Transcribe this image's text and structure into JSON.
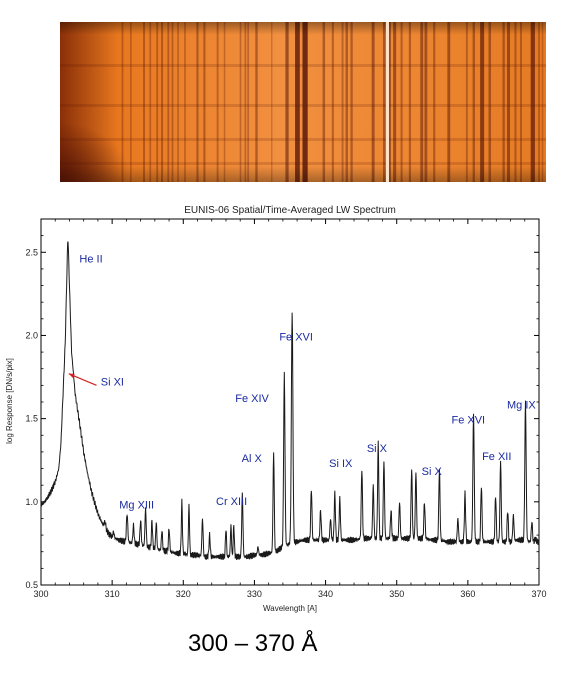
{
  "colors": {
    "label_color": "#1a2aa0",
    "arrow_color": "#d42020",
    "trace_color": "#1a1a1a",
    "axis_color": "#000000",
    "spectrogram_base": "#f08a2a",
    "spectrogram_dark": "#3a0a05",
    "spectrogram_light": "#f6b070"
  },
  "spectrogram": {
    "description_icon": "spectrogram-image"
  },
  "chart_data": {
    "type": "line",
    "title": "EUNIS-06 Spatial/Time-Averaged LW Spectrum",
    "xlabel": "Wavelength [A]",
    "ylabel": "log Response [DN/s/pix]",
    "xlim": [
      300,
      370
    ],
    "ylim": [
      0.5,
      2.7
    ],
    "x_ticks": [
      300,
      310,
      320,
      330,
      340,
      350,
      360,
      370
    ],
    "y_ticks": [
      0.5,
      1.0,
      1.5,
      2.0,
      2.5
    ],
    "y_tick_labels": [
      "0.5",
      "1.0",
      "1.5",
      "2.0",
      "2.5"
    ],
    "grid": false,
    "baseline": [
      [
        300.0,
        0.98
      ],
      [
        300.5,
        1.0
      ],
      [
        301.0,
        1.03
      ],
      [
        301.5,
        1.07
      ],
      [
        302.0,
        1.12
      ],
      [
        302.5,
        1.2
      ],
      [
        302.8,
        1.35
      ],
      [
        303.0,
        1.55
      ],
      [
        303.2,
        1.75
      ],
      [
        303.4,
        1.95
      ],
      [
        303.6,
        2.3
      ],
      [
        303.78,
        2.61
      ],
      [
        304.0,
        2.3
      ],
      [
        304.3,
        1.9
      ],
      [
        304.8,
        1.65
      ],
      [
        305.5,
        1.45
      ],
      [
        306.0,
        1.3
      ],
      [
        306.5,
        1.18
      ],
      [
        307.0,
        1.08
      ],
      [
        307.5,
        1.0
      ],
      [
        308.0,
        0.93
      ],
      [
        308.5,
        0.88
      ],
      [
        309.0,
        0.84
      ],
      [
        309.5,
        0.81
      ],
      [
        310.0,
        0.79
      ],
      [
        311.0,
        0.77
      ],
      [
        312.0,
        0.76
      ],
      [
        313.0,
        0.75
      ],
      [
        314.0,
        0.74
      ],
      [
        315.0,
        0.73
      ],
      [
        316.0,
        0.72
      ],
      [
        317.0,
        0.71
      ],
      [
        318.0,
        0.7
      ],
      [
        319.0,
        0.69
      ],
      [
        320.0,
        0.69
      ],
      [
        321.0,
        0.68
      ],
      [
        322.0,
        0.68
      ],
      [
        323.0,
        0.67
      ],
      [
        324.0,
        0.67
      ],
      [
        325.0,
        0.67
      ],
      [
        326.0,
        0.67
      ],
      [
        327.0,
        0.67
      ],
      [
        328.0,
        0.67
      ],
      [
        329.0,
        0.67
      ],
      [
        330.0,
        0.68
      ],
      [
        331.0,
        0.68
      ],
      [
        332.0,
        0.69
      ],
      [
        333.0,
        0.7
      ],
      [
        334.0,
        0.73
      ],
      [
        335.0,
        0.75
      ],
      [
        336.0,
        0.76
      ],
      [
        337.0,
        0.77
      ],
      [
        338.0,
        0.77
      ],
      [
        339.0,
        0.77
      ],
      [
        340.0,
        0.77
      ],
      [
        341.0,
        0.77
      ],
      [
        342.0,
        0.77
      ],
      [
        343.0,
        0.77
      ],
      [
        344.0,
        0.77
      ],
      [
        345.0,
        0.78
      ],
      [
        346.0,
        0.78
      ],
      [
        347.0,
        0.78
      ],
      [
        348.0,
        0.78
      ],
      [
        349.0,
        0.78
      ],
      [
        350.0,
        0.78
      ],
      [
        351.0,
        0.78
      ],
      [
        352.0,
        0.78
      ],
      [
        353.0,
        0.78
      ],
      [
        354.0,
        0.78
      ],
      [
        355.0,
        0.77
      ],
      [
        356.0,
        0.77
      ],
      [
        357.0,
        0.76
      ],
      [
        358.0,
        0.76
      ],
      [
        359.0,
        0.76
      ],
      [
        360.0,
        0.76
      ],
      [
        361.0,
        0.76
      ],
      [
        362.0,
        0.76
      ],
      [
        363.0,
        0.76
      ],
      [
        364.0,
        0.76
      ],
      [
        365.0,
        0.76
      ],
      [
        366.0,
        0.76
      ],
      [
        367.0,
        0.77
      ],
      [
        368.0,
        0.77
      ],
      [
        369.0,
        0.76
      ],
      [
        370.0,
        0.76
      ]
    ],
    "peaks": [
      [
        309.0,
        0.88,
        0.25
      ],
      [
        310.2,
        0.82,
        0.2
      ],
      [
        312.1,
        0.93,
        0.22
      ],
      [
        313.0,
        0.86,
        0.2
      ],
      [
        314.0,
        0.89,
        0.2
      ],
      [
        314.7,
        0.96,
        0.2
      ],
      [
        315.6,
        0.89,
        0.18
      ],
      [
        316.2,
        0.88,
        0.18
      ],
      [
        317.0,
        0.83,
        0.18
      ],
      [
        318.0,
        0.84,
        0.2
      ],
      [
        319.8,
        1.0,
        0.18
      ],
      [
        320.8,
        0.98,
        0.18
      ],
      [
        322.7,
        0.9,
        0.2
      ],
      [
        323.7,
        0.8,
        0.2
      ],
      [
        326.0,
        0.84,
        0.18
      ],
      [
        326.7,
        0.86,
        0.18
      ],
      [
        327.1,
        0.86,
        0.18
      ],
      [
        328.3,
        1.05,
        0.2
      ],
      [
        330.5,
        0.73,
        0.2
      ],
      [
        332.7,
        1.3,
        0.2
      ],
      [
        334.2,
        1.77,
        0.22
      ],
      [
        335.3,
        2.15,
        0.25
      ],
      [
        338.0,
        1.08,
        0.2
      ],
      [
        339.3,
        0.95,
        0.2
      ],
      [
        340.7,
        0.9,
        0.2
      ],
      [
        341.3,
        1.05,
        0.2
      ],
      [
        342.0,
        1.02,
        0.2
      ],
      [
        345.1,
        1.2,
        0.2
      ],
      [
        346.7,
        1.1,
        0.2
      ],
      [
        347.4,
        1.35,
        0.2
      ],
      [
        348.2,
        1.25,
        0.2
      ],
      [
        349.2,
        0.95,
        0.2
      ],
      [
        350.4,
        1.0,
        0.2
      ],
      [
        352.1,
        1.2,
        0.2
      ],
      [
        352.7,
        1.18,
        0.2
      ],
      [
        353.9,
        1.0,
        0.2
      ],
      [
        356.0,
        1.2,
        0.2
      ],
      [
        358.6,
        0.9,
        0.2
      ],
      [
        359.6,
        1.05,
        0.2
      ],
      [
        360.8,
        1.53,
        0.22
      ],
      [
        361.9,
        1.1,
        0.2
      ],
      [
        363.9,
        1.04,
        0.2
      ],
      [
        364.6,
        1.25,
        0.2
      ],
      [
        365.6,
        0.95,
        0.2
      ],
      [
        366.4,
        0.92,
        0.2
      ],
      [
        368.1,
        1.6,
        0.22
      ],
      [
        369.0,
        0.88,
        0.2
      ],
      [
        369.5,
        0.78,
        0.2
      ]
    ],
    "annotations": [
      {
        "text": "He II",
        "x": 305.4,
        "y": 2.44
      },
      {
        "text": "Si XI",
        "x": 308.4,
        "y": 1.7
      },
      {
        "text": "Mg XIII",
        "x": 311.0,
        "y": 0.96
      },
      {
        "text": "Cr XIII",
        "x": 324.6,
        "y": 0.98
      },
      {
        "text": "Fe XIV",
        "x": 327.3,
        "y": 1.6
      },
      {
        "text": "Al X",
        "x": 328.2,
        "y": 1.24
      },
      {
        "text": "Fe XVI",
        "x": 333.5,
        "y": 1.97
      },
      {
        "text": "Si IX",
        "x": 340.5,
        "y": 1.21
      },
      {
        "text": "Si X",
        "x": 345.8,
        "y": 1.3
      },
      {
        "text": "Si X",
        "x": 353.5,
        "y": 1.16
      },
      {
        "text": "Fe XVI",
        "x": 357.7,
        "y": 1.47
      },
      {
        "text": "Fe XII",
        "x": 362.0,
        "y": 1.25
      },
      {
        "text": "Mg IX",
        "x": 365.5,
        "y": 1.56
      }
    ],
    "arrow": {
      "from": [
        307.8,
        1.7
      ],
      "to": [
        303.9,
        1.77
      ]
    }
  },
  "caption": "300 – 370 Å"
}
